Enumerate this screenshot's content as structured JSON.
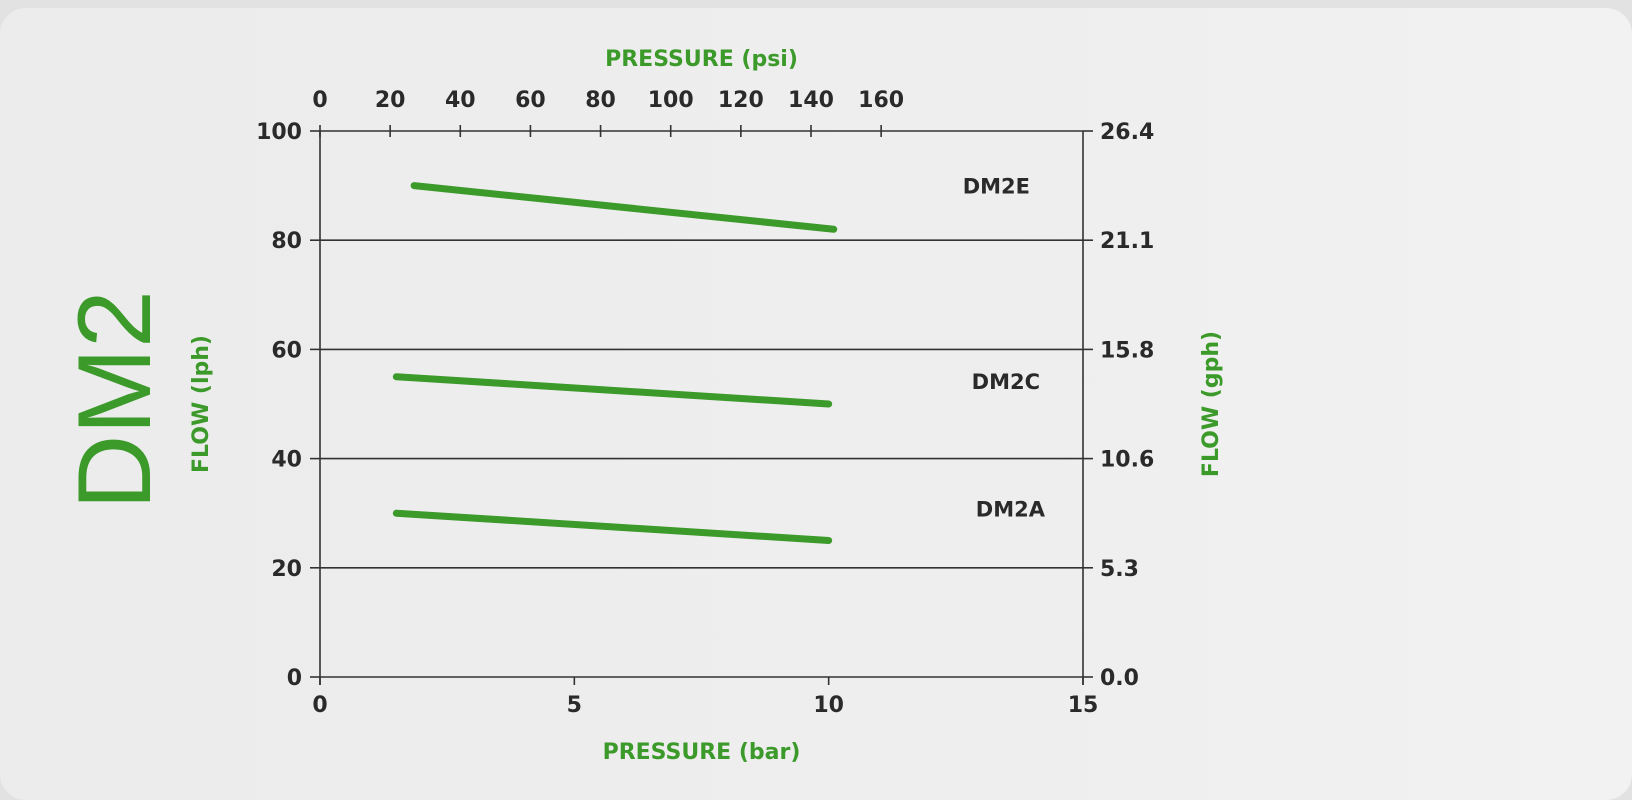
{
  "title": "DM2",
  "chart_data": {
    "type": "line",
    "x": {
      "label": "PRESSURE (bar)",
      "range": [
        0,
        15
      ],
      "ticks": [
        0,
        5,
        10,
        15
      ]
    },
    "x_top": {
      "label": "PRESSURE (psi)",
      "ticks": [
        0,
        20,
        40,
        60,
        80,
        100,
        120,
        140,
        160
      ]
    },
    "y": {
      "label": "FLOW (lph)",
      "range": [
        0,
        100
      ],
      "ticks": [
        0,
        20,
        40,
        60,
        80,
        100
      ]
    },
    "y_right": {
      "label": "FLOW (gph)",
      "ticks": [
        "0.0",
        "5.3",
        "10.6",
        "15.8",
        "21.1",
        "26.4"
      ]
    },
    "grid": "horizontal",
    "series": [
      {
        "name": "DM2E",
        "points": [
          [
            1.85,
            90
          ],
          [
            10.1,
            82
          ]
        ]
      },
      {
        "name": "DM2C",
        "points": [
          [
            1.5,
            55
          ],
          [
            10.0,
            50
          ]
        ]
      },
      {
        "name": "DM2A",
        "points": [
          [
            1.5,
            30
          ],
          [
            10.0,
            25
          ]
        ]
      }
    ],
    "line_color": "#3b9a2a"
  }
}
